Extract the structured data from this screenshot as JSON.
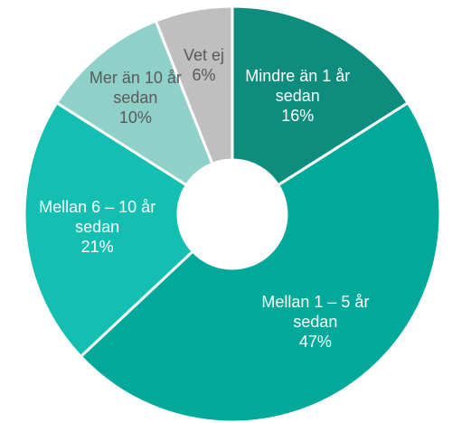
{
  "chart_data": {
    "type": "donut",
    "categories": [
      "Mindre än 1 år sedan",
      "Mellan 1 – 5 år sedan",
      "Mellan 6 – 10 år sedan",
      "Mer än 10 år sedan",
      "Vet ej"
    ],
    "values": [
      16,
      47,
      21,
      10,
      6
    ],
    "value_labels": [
      "16%",
      "47%",
      "21%",
      "10%",
      "6%"
    ],
    "colors": [
      "#0e8c7e",
      "#00a99a",
      "#13bfb0",
      "#8fd1c9",
      "#bfbfbf"
    ]
  }
}
